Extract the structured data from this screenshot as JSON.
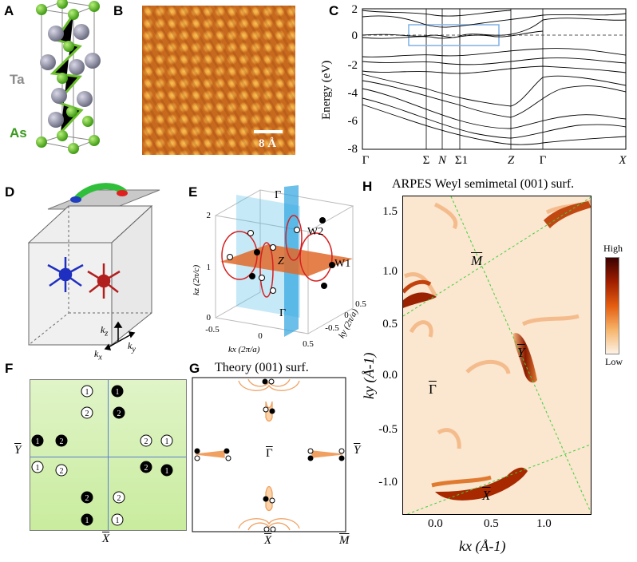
{
  "panels": {
    "A": "A",
    "B": "B",
    "C": "C",
    "D": "D",
    "E": "E",
    "F": "F",
    "G": "G",
    "H": "H"
  },
  "panel_a": {
    "ta": "Ta",
    "as": "As",
    "ta_color": "#8c8c8c",
    "as_color": "#3a9a1e"
  },
  "panel_b": {
    "scale": "8 Å"
  },
  "panel_c": {
    "ylabel": "Energy (eV)",
    "yticks": [
      "2",
      "0",
      "-2",
      "-4",
      "-6",
      "-8"
    ],
    "kpoints": [
      "Γ",
      "Σ",
      "N",
      "Σ1",
      "Z",
      "Γ",
      "X"
    ],
    "box_color": "#7fb0e6"
  },
  "panel_d": {
    "kz": "k",
    "kz_sub": "z",
    "kx": "k",
    "kx_sub": "x",
    "ky": "k",
    "ky_sub": "y"
  },
  "panel_e": {
    "gamma_top": "Γ",
    "z": "Z",
    "gamma_bot": "Γ",
    "w1": "W1",
    "w2": "W2",
    "kz_axis": "kz (2π/c)",
    "kx_axis": "kx (2π/a)",
    "ky_axis": "ky (2π/a)",
    "kz_ticks": [
      "2",
      "1",
      "0"
    ],
    "kx_ticks": [
      "-0.5",
      "0",
      "0.5"
    ],
    "ky_ticks": [
      "-0.5",
      "0",
      "0.5"
    ]
  },
  "panel_f": {
    "ybar": "Y",
    "xbar": "X",
    "points": [
      {
        "n": "1",
        "filled": false
      },
      {
        "n": "1",
        "filled": true
      },
      {
        "n": "2",
        "filled": false
      },
      {
        "n": "2",
        "filled": true
      },
      {
        "n": "1",
        "filled": true
      },
      {
        "n": "2",
        "filled": true
      },
      {
        "n": "2",
        "filled": false
      },
      {
        "n": "1",
        "filled": false
      },
      {
        "n": "1",
        "filled": false
      },
      {
        "n": "2",
        "filled": false
      },
      {
        "n": "2",
        "filled": true
      },
      {
        "n": "1",
        "filled": true
      },
      {
        "n": "2",
        "filled": true
      },
      {
        "n": "2",
        "filled": false
      },
      {
        "n": "1",
        "filled": true
      },
      {
        "n": "1",
        "filled": false
      }
    ]
  },
  "panel_g": {
    "title": "Theory (001) surf.",
    "gamma": "Γ",
    "y": "Y",
    "x": "X",
    "m": "M"
  },
  "panel_h": {
    "title": "ARPES Weyl semimetal (001) surf.",
    "m": "M",
    "gamma": "Γ",
    "y": "Y",
    "x": "X",
    "yticks": [
      "1.5",
      "1.0",
      "0.5",
      "0.0",
      "-0.5",
      "-1.0"
    ],
    "xticks": [
      "0.0",
      "0.5",
      "1.0"
    ],
    "ylabel": "ky (Å-1)",
    "xlabel": "kx (Å-1)",
    "cbar_high": "High",
    "cbar_low": "Low"
  }
}
